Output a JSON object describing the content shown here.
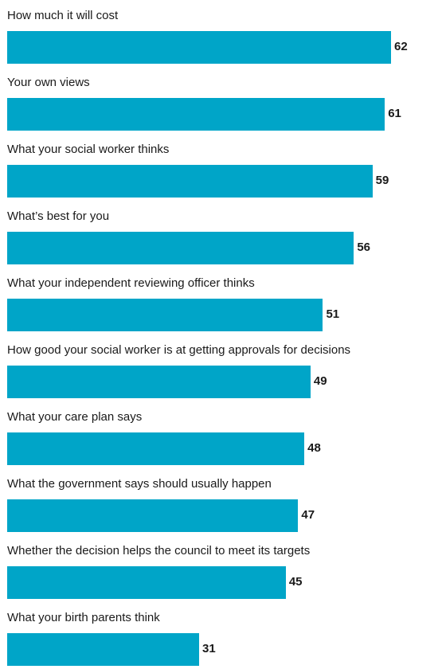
{
  "colors": {
    "bar": "#00a5c8",
    "text": "#1a1a1a"
  },
  "chart_data": {
    "type": "bar",
    "orientation": "horizontal",
    "categories": [
      "How much it will cost",
      "Your own views",
      "What your social worker thinks",
      "What’s best for you",
      "What your independent reviewing officer thinks",
      "How good your social worker is at getting approvals for decisions",
      "What your care plan says",
      "What the government says should usually happen",
      "Whether the decision helps the council to meet its targets",
      "What your birth parents think"
    ],
    "values": [
      62,
      61,
      59,
      56,
      51,
      49,
      48,
      47,
      45,
      31
    ],
    "value_labels": [
      "62",
      "61",
      "59",
      "56",
      "51",
      "49",
      "48",
      "47",
      "45",
      "31"
    ],
    "xlim": [
      0,
      62
    ],
    "grid": false,
    "legend": "none"
  }
}
